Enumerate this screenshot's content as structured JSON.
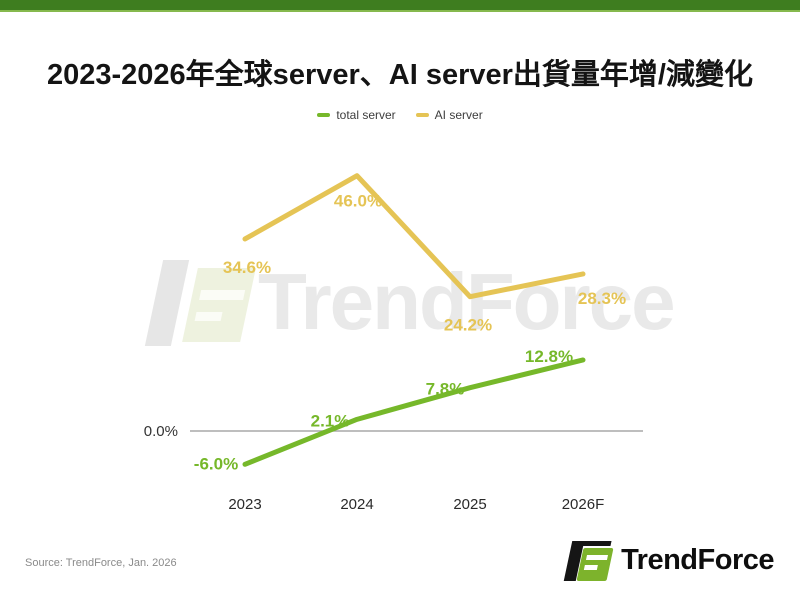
{
  "header": {
    "title": "2023-2026年全球server、AI server出貨量年增/減變化"
  },
  "legend": [
    {
      "label": "total server",
      "color": "#76b82a"
    },
    {
      "label": "AI server",
      "color": "#e5c455"
    }
  ],
  "chart_data": {
    "type": "line",
    "categories": [
      "2023",
      "2024",
      "2025",
      "2026F"
    ],
    "series": [
      {
        "name": "total server",
        "color": "#76b82a",
        "values": [
          -6.0,
          2.1,
          7.8,
          12.8
        ]
      },
      {
        "name": "AI server",
        "color": "#e5c455",
        "values": [
          34.6,
          46.0,
          24.2,
          28.3
        ]
      }
    ],
    "title": "2023-2026年全球server、AI server出貨量年增/減變化",
    "xlabel": "",
    "ylabel": "",
    "baseline_label": "0.0%",
    "ylim": [
      -12,
      52
    ],
    "grid": false,
    "legend_position": "top",
    "data_labels": true
  },
  "watermark": {
    "text": "TrendForce"
  },
  "footer": {
    "source": "Source: TrendForce, Jan. 2026",
    "brand": "TrendForce"
  },
  "colors": {
    "top_bar": "#3e7d1f",
    "top_bar_edge": "#86b94d",
    "total_server": "#76b82a",
    "ai_server": "#e5c455",
    "axis_line": "#a8a8a8",
    "axis_text": "#333333",
    "category_text": "#2a2a2a",
    "title_text": "#141414",
    "source_text": "#8a8a8a"
  }
}
